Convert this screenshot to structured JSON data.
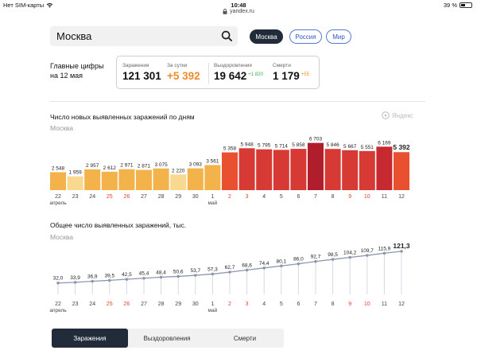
{
  "status": {
    "carrier": "Нет SIM-карты",
    "time": "10:48",
    "battery": "39 %",
    "battery_level": 0.39,
    "url": "yandex.ru"
  },
  "search": {
    "value": "Москва",
    "icon": "search-icon"
  },
  "region_tabs": [
    {
      "label": "Москва",
      "active": true
    },
    {
      "label": "Россия",
      "active": false
    },
    {
      "label": "Мир",
      "active": false
    }
  ],
  "key_figures": {
    "title_line1": "Главные цифры",
    "title_line2": "на 12 мая",
    "infected_label": "Заражения",
    "infected_value": "121 301",
    "daily_label": "За сутки",
    "daily_value": "+5 392",
    "recovered_label": "Выздоровления",
    "recovered_value": "19 642",
    "recovered_delta": "+1 820",
    "deaths_label": "Смерти",
    "deaths_value": "1 179",
    "deaths_delta": "+55"
  },
  "colors": {
    "accent": "#222b3a",
    "orange": "#f08a24",
    "green": "#3fae52",
    "red_text": "#e0442f"
  },
  "watermark": "Яндекс",
  "charts_meta": {
    "daily_title": "Число новых выявленных заражений по дням",
    "daily_region": "Москва",
    "total_title": "Общее число выявленных заражений, тыс.",
    "total_region": "Москва"
  },
  "chart_data": [
    {
      "type": "bar",
      "title": "Число новых выявленных заражений по дням",
      "subtitle": "Москва",
      "categories": [
        "22",
        "23",
        "24",
        "25",
        "26",
        "27",
        "28",
        "29",
        "30",
        "1",
        "2",
        "3",
        "4",
        "5",
        "6",
        "7",
        "8",
        "9",
        "10",
        "11",
        "12"
      ],
      "month_labels": {
        "0": "апрель",
        "9": "май"
      },
      "red_categories": [
        "25",
        "26",
        "2",
        "3",
        "9",
        "10"
      ],
      "values": [
        2548,
        1959,
        2957,
        2612,
        2971,
        2871,
        3075,
        2220,
        3093,
        3561,
        5358,
        5948,
        5795,
        5714,
        5858,
        6703,
        5846,
        5667,
        5551,
        6169,
        5392
      ],
      "value_labels": [
        "2 548",
        "1 959",
        "2 957",
        "2 612",
        "2 971",
        "2 871",
        "3 075",
        "2 220",
        "3 093",
        "3 561",
        "5 358",
        "5 948",
        "5 795",
        "5 714",
        "5 858",
        "6 703",
        "5 846",
        "5 667",
        "5 551",
        "6 169",
        "5 392"
      ],
      "ylim": [
        0,
        7000
      ]
    },
    {
      "type": "line",
      "title": "Общее число выявленных заражений, тыс.",
      "subtitle": "Москва",
      "categories": [
        "22",
        "23",
        "24",
        "25",
        "26",
        "27",
        "28",
        "29",
        "30",
        "1",
        "2",
        "3",
        "4",
        "5",
        "6",
        "7",
        "8",
        "9",
        "10",
        "11",
        "12"
      ],
      "month_labels": {
        "0": "апрель",
        "9": "май"
      },
      "red_categories": [
        "25",
        "26",
        "2",
        "3",
        "9",
        "10"
      ],
      "values": [
        32.0,
        33.9,
        36.9,
        39.5,
        42.5,
        45.4,
        48.4,
        50.6,
        53.7,
        57.3,
        62.7,
        68.6,
        74.4,
        80.1,
        86.0,
        92.7,
        98.5,
        104.2,
        109.7,
        115.9,
        121.3
      ],
      "value_labels": [
        "32,0",
        "33,9",
        "36,9",
        "39,5",
        "42,5",
        "45,4",
        "48,4",
        "50,6",
        "53,7",
        "57,3",
        "62,7",
        "68,6",
        "74,4",
        "80,1",
        "86,0",
        "92,7",
        "98,5",
        "104,2",
        "109,7",
        "115,9",
        "121,3"
      ],
      "ylim": [
        0,
        130
      ]
    }
  ],
  "bottom_tabs": [
    {
      "label": "Заражения",
      "active": true
    },
    {
      "label": "Выздоровления",
      "active": false
    },
    {
      "label": "Смерти",
      "active": false
    }
  ]
}
